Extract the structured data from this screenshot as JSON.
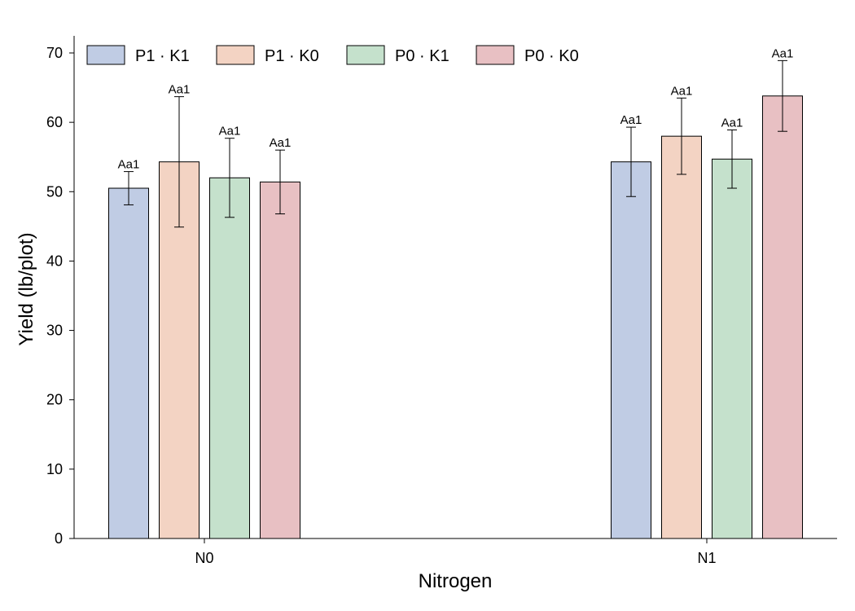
{
  "chart_data": {
    "type": "bar",
    "title": "",
    "xlabel": "Nitrogen",
    "ylabel": "Yield (lb/plot)",
    "categories": [
      "N0",
      "N1"
    ],
    "ylim": [
      0,
      72
    ],
    "yticks": [
      0,
      10,
      20,
      30,
      40,
      50,
      60,
      70
    ],
    "grid": false,
    "legend_position": "top-left",
    "series": [
      {
        "name": "P1 · K1",
        "color": "#c0cce4",
        "values": [
          50.5,
          54.3
        ],
        "errors": [
          2.4,
          5.0
        ],
        "labels": [
          "Aa1",
          "Aa1"
        ]
      },
      {
        "name": "P1 · K0",
        "color": "#f3d3c3",
        "values": [
          54.3,
          58.0
        ],
        "errors": [
          9.4,
          5.5
        ],
        "labels": [
          "Aa1",
          "Aa1"
        ]
      },
      {
        "name": "P0 · K1",
        "color": "#c5e1cc",
        "values": [
          52.0,
          54.7
        ],
        "errors": [
          5.7,
          4.2
        ],
        "labels": [
          "Aa1",
          "Aa1"
        ]
      },
      {
        "name": "P0 · K0",
        "color": "#e8c0c3",
        "values": [
          51.4,
          63.8
        ],
        "errors": [
          4.6,
          5.1
        ],
        "labels": [
          "Aa1",
          "Aa1"
        ]
      }
    ]
  }
}
